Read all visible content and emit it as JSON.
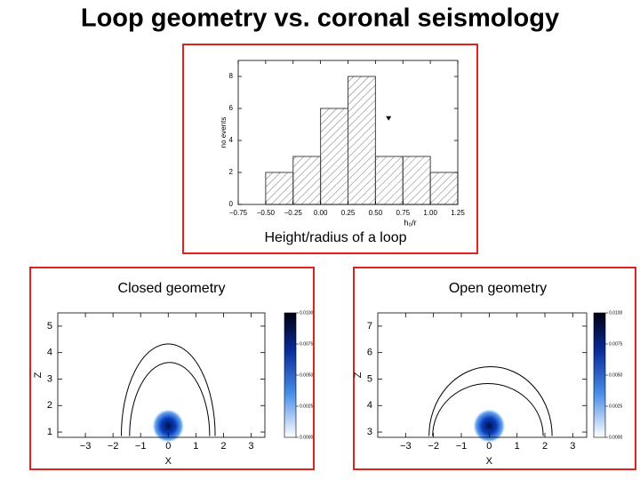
{
  "title": "Loop geometry vs. coronal seismology",
  "chart_data": [
    {
      "type": "histogram",
      "caption": "Height/radius of a loop",
      "xlabel": "h₀/r",
      "ylabel": "no events",
      "bins": [
        -0.5,
        -0.25,
        0,
        0.25,
        0.5,
        0.75,
        1.0,
        1.25
      ],
      "values": [
        2,
        3,
        6,
        8,
        3,
        3,
        2
      ],
      "color": "#444444",
      "xlim": [
        -0.75,
        1.25
      ],
      "xticks": [
        {
          "value": -0.75,
          "label": "−0.75"
        },
        {
          "value": -0.5,
          "label": "−0.50"
        },
        {
          "value": -0.25,
          "label": "−0.25"
        },
        {
          "value": 0,
          "label": "0.00"
        },
        0.25,
        {
          "value": 0.5,
          "label": "0.50"
        },
        0.75,
        {
          "value": 1.0,
          "label": "1.00"
        },
        1.25
      ],
      "ylim": [
        0,
        9
      ],
      "yticks": [
        0,
        2,
        4,
        6,
        8
      ],
      "marker": {
        "x": 0.62,
        "y": 5.4
      }
    },
    {
      "type": "contour",
      "title": "Closed geometry",
      "xlabel": "X",
      "ylabel": "Z",
      "xlim": [
        -4,
        3.5
      ],
      "xticks": [
        {
          "value": -3,
          "label": "−3"
        },
        {
          "value": -2,
          "label": "−2"
        },
        {
          "value": -1,
          "label": "−1"
        },
        0,
        1,
        2,
        3
      ],
      "ylim": [
        0.8,
        5.5
      ],
      "yticks": [
        1,
        2,
        3,
        4,
        5
      ],
      "loops": [
        {
          "x0": -1.7,
          "x1": 1.7,
          "base": 0.85,
          "top": 4.33
        },
        {
          "x0": -1.4,
          "x1": 1.5,
          "base": 0.85,
          "top": 3.63
        }
      ],
      "source": {
        "x": 0,
        "z": 1.23,
        "radius": 0.6
      },
      "clim": [
        0,
        0.01
      ],
      "cticks": [
        {
          "value": 0,
          "label": "0.0000"
        },
        {
          "value": 0.0025,
          "label": "0.0025"
        },
        {
          "value": 0.005,
          "label": "0.0050"
        },
        {
          "value": 0.0075,
          "label": "0.0075"
        },
        {
          "value": 0.01,
          "label": "0.0100"
        }
      ]
    },
    {
      "type": "contour",
      "title": "Open geometry",
      "xlabel": "X",
      "ylabel": "Z",
      "xlim": [
        -4,
        3.5
      ],
      "xticks": [
        {
          "value": -3,
          "label": "−3"
        },
        {
          "value": -2,
          "label": "−2"
        },
        {
          "value": -1,
          "label": "−1"
        },
        0,
        1,
        2,
        3
      ],
      "ylim": [
        2.8,
        7.5
      ],
      "yticks": [
        3,
        4,
        5,
        6,
        7
      ],
      "loops": [
        {
          "x0": -2.16,
          "x1": 2.26,
          "base": 2.85,
          "top": 5.47
        },
        {
          "x0": -2.03,
          "x1": 1.94,
          "base": 2.85,
          "top": 4.83
        }
      ],
      "source": {
        "x": 0,
        "z": 3.23,
        "radius": 0.6
      },
      "clim": [
        0,
        0.01
      ],
      "cticks": [
        {
          "value": 0,
          "label": "0.0000"
        },
        {
          "value": 0.0025,
          "label": "0.0025"
        },
        {
          "value": 0.005,
          "label": "0.0050"
        },
        {
          "value": 0.0075,
          "label": "0.0075"
        },
        {
          "value": 0.01,
          "label": "0.0100"
        }
      ]
    }
  ]
}
